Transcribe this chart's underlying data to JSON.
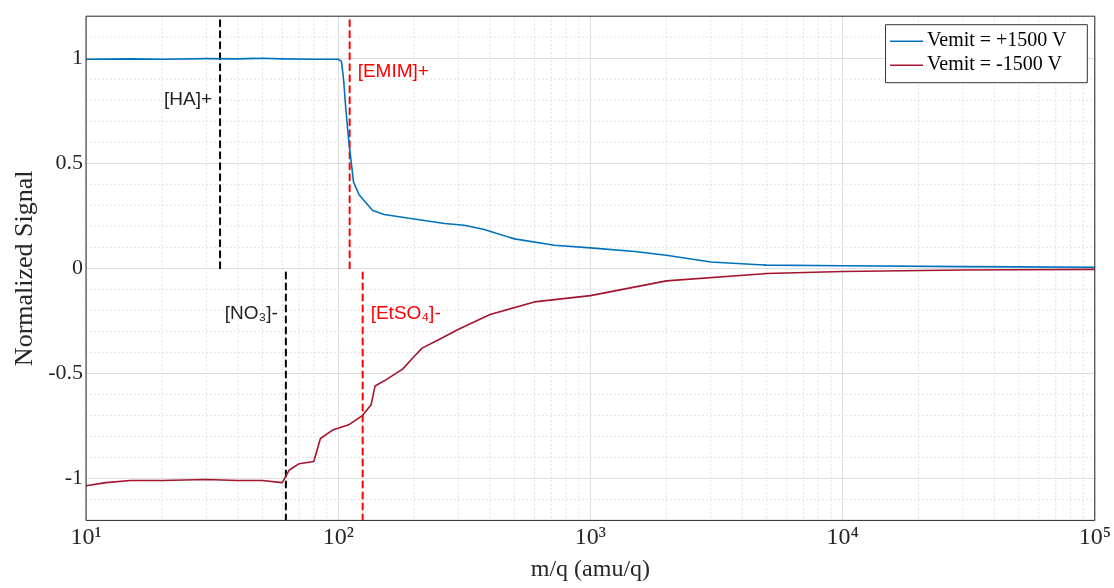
{
  "chart_data": {
    "type": "line",
    "xlabel": "m/q (amu/q)",
    "ylabel": "Normalized Signal",
    "log": "x",
    "xlim": [
      10,
      100000
    ],
    "xticks": [
      {
        "value": 10,
        "label": "10¹"
      },
      {
        "value": 100,
        "label": "10²"
      },
      {
        "value": 1000,
        "label": "10³"
      },
      {
        "value": 10000,
        "label": "10⁴"
      },
      {
        "value": 100000,
        "label": "10⁵"
      }
    ],
    "ylim": [
      -1.2,
      1.2
    ],
    "yticks": [
      -1,
      -0.5,
      0,
      0.5,
      1
    ],
    "grid": true,
    "legend": "top right",
    "marker": "none",
    "line_style": "solid",
    "series": [
      {
        "name": "Vemit = +1500 V",
        "color": "#0072bd",
        "x": [
          10,
          15,
          20,
          30,
          40,
          50,
          60,
          80,
          100,
          103,
          105,
          107,
          110,
          115,
          121,
          127,
          137,
          152,
          200,
          264,
          316,
          379,
          500,
          720,
          1000,
          1500,
          2000,
          3000,
          5000,
          10000,
          30000,
          100000
        ],
        "values": [
          0.995,
          0.997,
          0.995,
          0.998,
          0.997,
          1.0,
          0.997,
          0.995,
          0.995,
          0.985,
          0.9,
          0.77,
          0.61,
          0.41,
          0.35,
          0.32,
          0.275,
          0.256,
          0.235,
          0.213,
          0.205,
          0.185,
          0.14,
          0.11,
          0.097,
          0.08,
          0.062,
          0.03,
          0.015,
          0.012,
          0.008,
          0.005
        ]
      },
      {
        "name": "Vemit = -1500 V",
        "color": "#a2142f",
        "x": [
          10,
          12,
          15,
          20,
          30,
          40,
          50,
          60,
          61,
          64,
          70,
          80,
          85,
          95,
          110,
          125,
          135,
          140,
          155,
          180,
          200,
          215,
          250,
          300,
          400,
          600,
          1000,
          2000,
          5000,
          10000,
          30000,
          100000
        ],
        "values": [
          -1.035,
          -1.02,
          -1.01,
          -1.01,
          -1.005,
          -1.01,
          -1.01,
          -1.02,
          -1.005,
          -0.96,
          -0.93,
          -0.92,
          -0.81,
          -0.77,
          -0.745,
          -0.7,
          -0.65,
          -0.56,
          -0.53,
          -0.48,
          -0.42,
          -0.38,
          -0.34,
          -0.29,
          -0.22,
          -0.16,
          -0.13,
          -0.06,
          -0.025,
          -0.015,
          -0.008,
          -0.005
        ]
      },
      {
        "name": "[HA]+",
        "type": "line",
        "color": "#000000",
        "line_style": "dashed",
        "x": [
          34,
          34
        ],
        "values": [
          0,
          1.2
        ]
      },
      {
        "name": "[EMIM]+",
        "type": "line",
        "color": "#ff0000",
        "line_style": "dashed",
        "x": [
          111,
          111
        ],
        "values": [
          0,
          1.2
        ]
      },
      {
        "name": "[NO₃]-",
        "type": "line",
        "color": "#000000",
        "line_style": "dashed",
        "x": [
          62,
          62
        ],
        "values": [
          -1.2,
          0
        ]
      },
      {
        "name": "[EtSO₄]-",
        "type": "line",
        "color": "#ff0000",
        "line_style": "dashed",
        "x": [
          125,
          125
        ],
        "values": [
          -1.2,
          0
        ]
      }
    ]
  }
}
